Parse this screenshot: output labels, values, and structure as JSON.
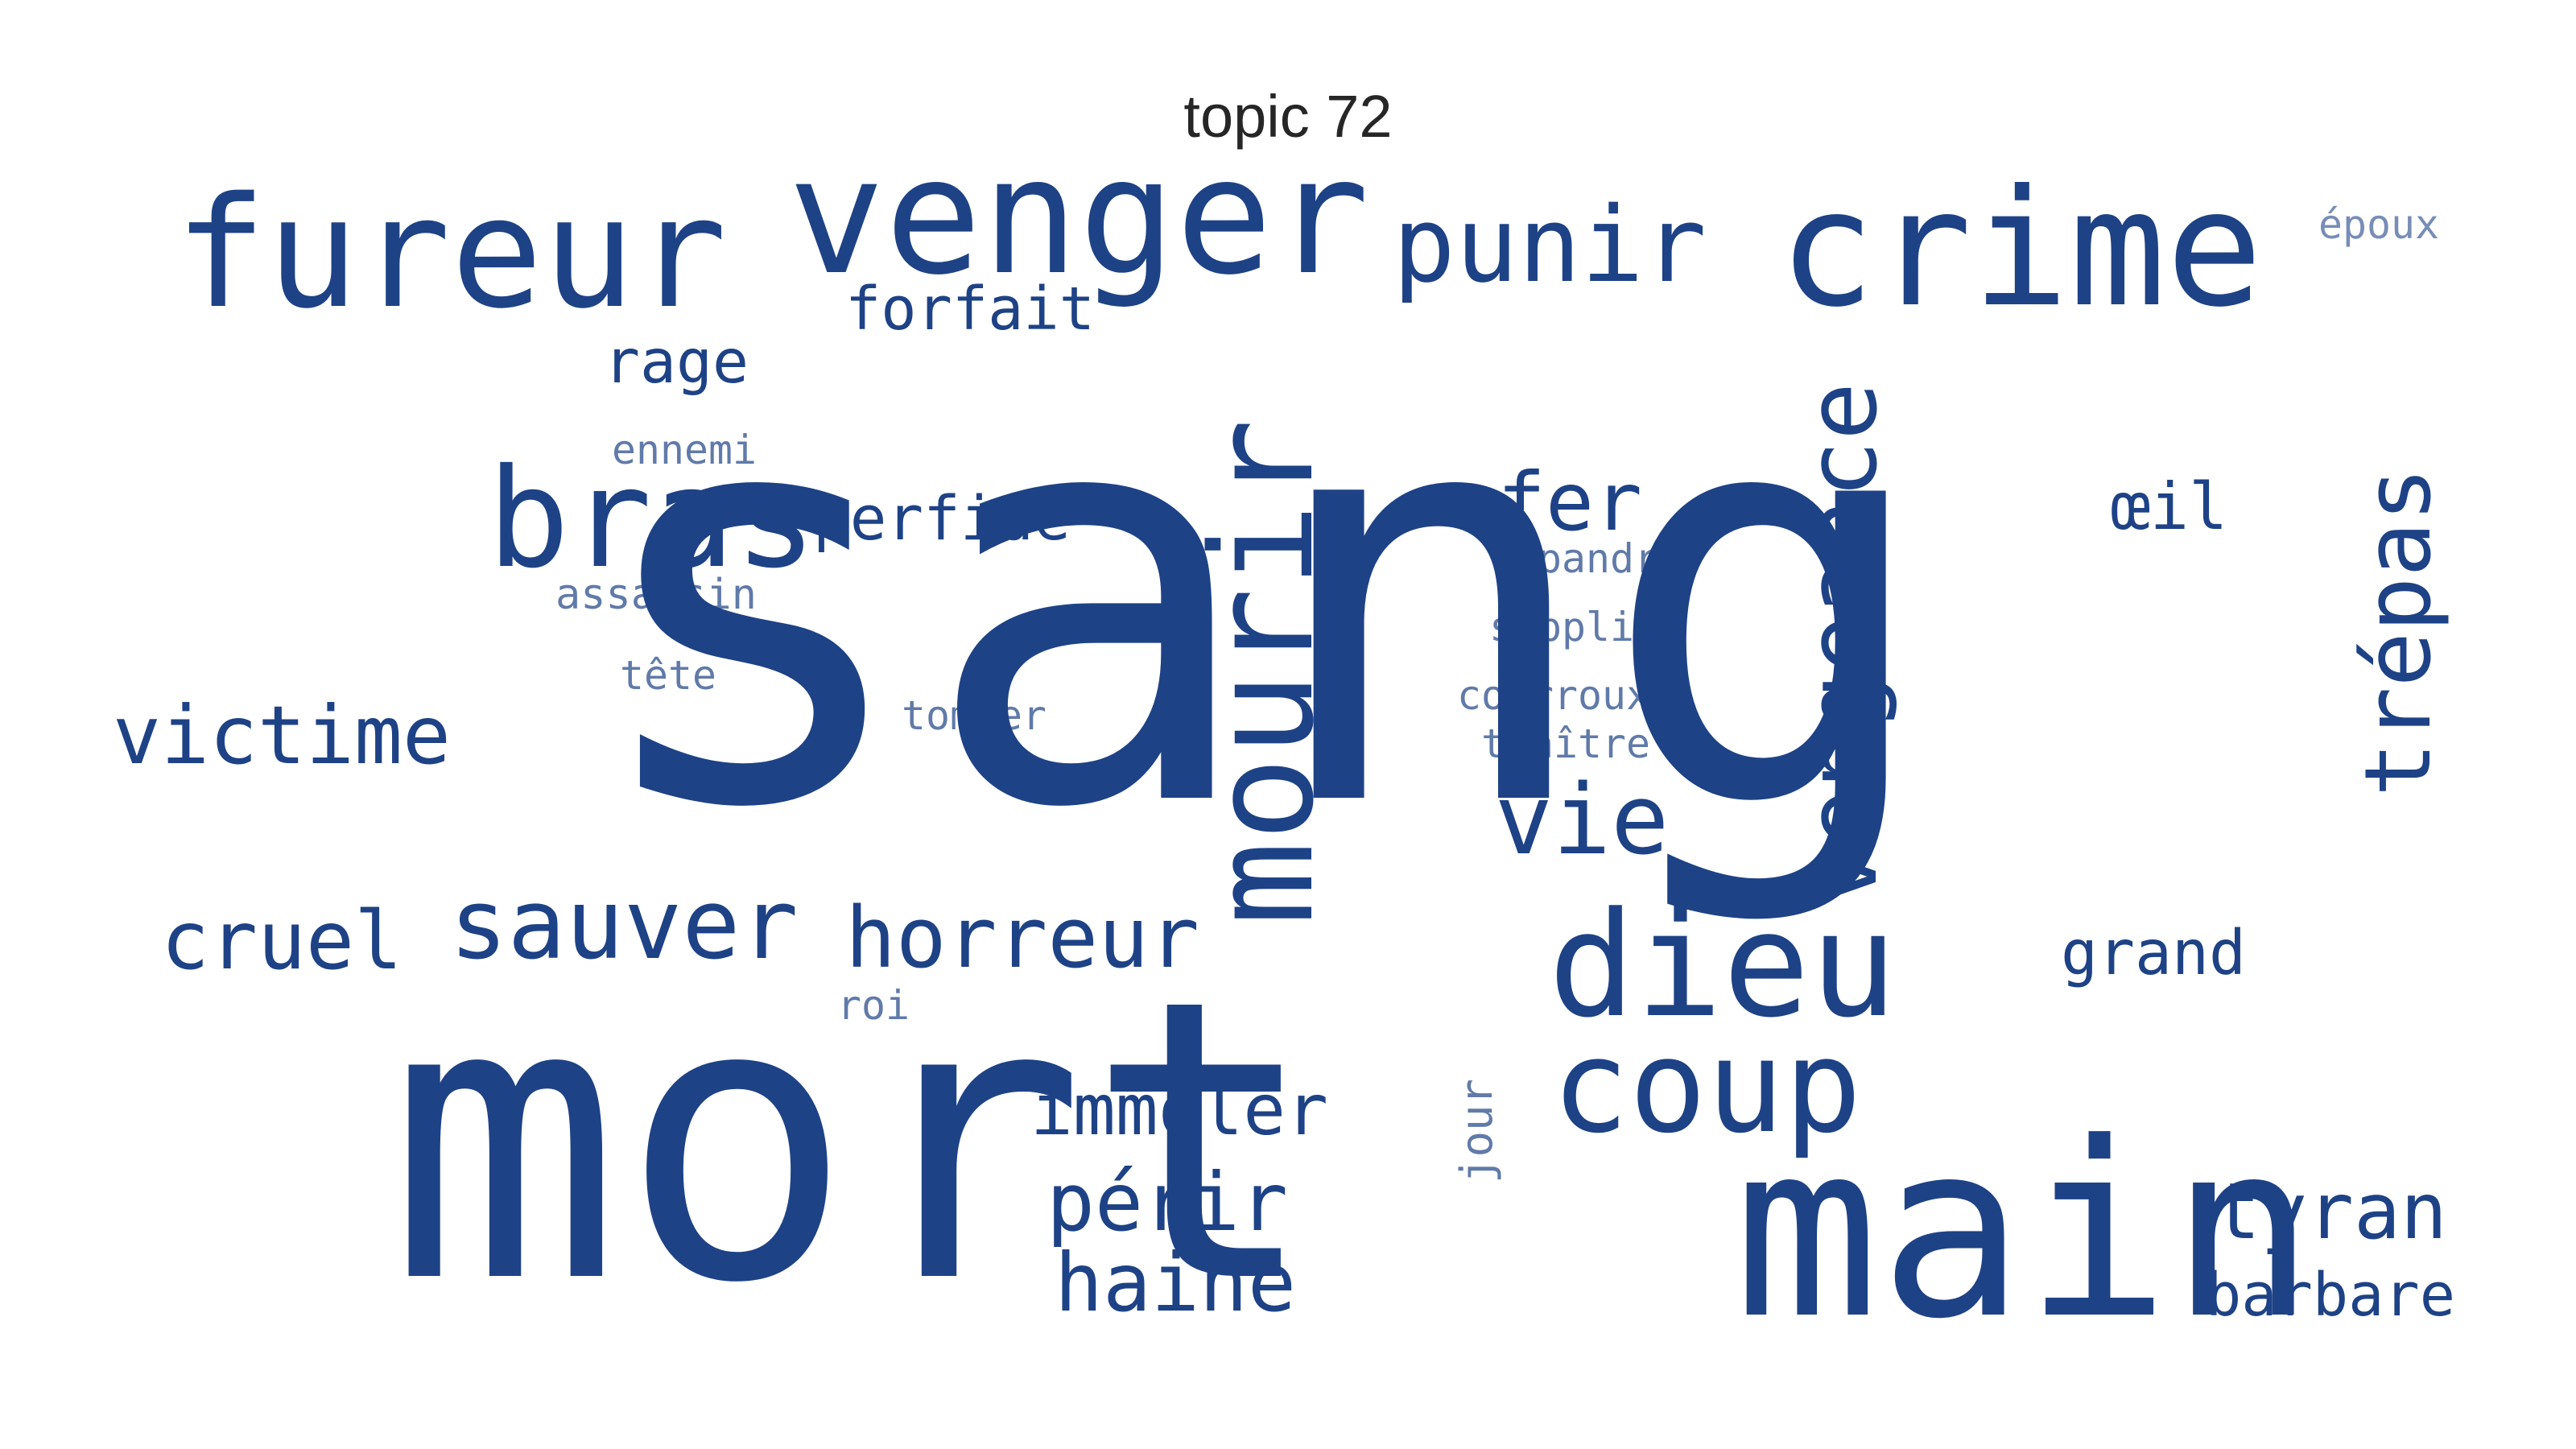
{
  "title": "topic 72",
  "color": "#1e4286",
  "words": [
    "sang",
    "mort",
    "main",
    "venger",
    "crime",
    "fureur",
    "bras",
    "mourir",
    "dieu",
    "coup",
    "vengeance",
    "punir",
    "trépas",
    "vie",
    "fer",
    "sauver",
    "horreur",
    "victime",
    "cruel",
    "immoler",
    "périr",
    "haine",
    "tyran",
    "barbare",
    "grand",
    "perfide",
    "forfait",
    "rage",
    "œil",
    "répandre",
    "supplice",
    "assassin",
    "ennemi",
    "tête",
    "tomber",
    "courroux",
    "traître",
    "roi",
    "jour",
    "époux"
  ]
}
